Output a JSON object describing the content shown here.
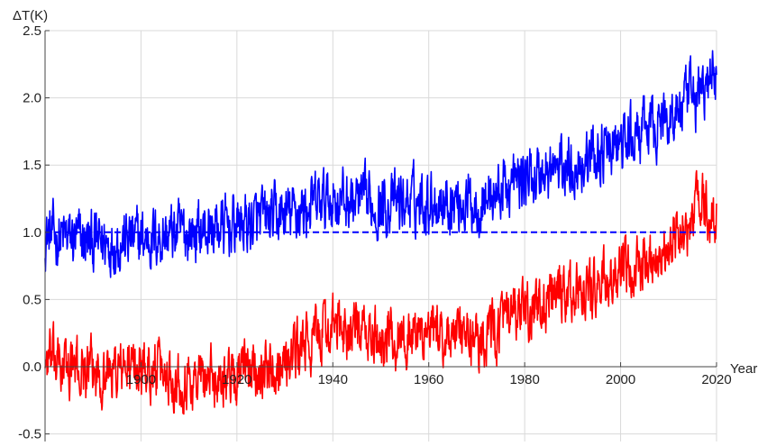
{
  "chart_data": {
    "type": "line",
    "title": "",
    "xlabel": "Year",
    "ylabel": "ΔT(K)",
    "xlim": [
      1880,
      2020
    ],
    "ylim": [
      -0.55,
      2.5
    ],
    "x_ticks": [
      1900,
      1920,
      1940,
      1960,
      1980,
      2000,
      2020
    ],
    "x_tick_labels": [
      "1900",
      "1920",
      "1940",
      "1960",
      "1980",
      "2000",
      "2020"
    ],
    "y_ticks": [
      -0.5,
      0.0,
      0.5,
      1.0,
      1.5,
      2.0,
      2.5
    ],
    "y_tick_labels": [
      "-0.5",
      "0.0",
      "0.5",
      "1.0",
      "1.5",
      "2.0",
      "2.5"
    ],
    "grid": true,
    "legend": "none",
    "series": [
      {
        "color": "#0000ff",
        "style": "solid",
        "sampling": "monthly",
        "x": [
          1880,
          1890,
          1900,
          1910,
          1920,
          1930,
          1940,
          1950,
          1960,
          1970,
          1980,
          1990,
          2000,
          2010,
          2015,
          2020
        ],
        "trend": [
          0.98,
          0.92,
          0.95,
          1.0,
          1.05,
          1.12,
          1.25,
          1.2,
          1.25,
          1.22,
          1.4,
          1.5,
          1.65,
          1.85,
          2.0,
          2.15
        ],
        "amplitude": 0.18
      },
      {
        "color": "#ff0000",
        "style": "solid",
        "sampling": "monthly",
        "x": [
          1880,
          1890,
          1900,
          1910,
          1920,
          1930,
          1940,
          1950,
          1960,
          1970,
          1980,
          1990,
          2000,
          2010,
          2015,
          2016,
          2020
        ],
        "trend": [
          0.05,
          -0.05,
          0.0,
          -0.1,
          -0.05,
          0.05,
          0.3,
          0.2,
          0.25,
          0.2,
          0.4,
          0.55,
          0.65,
          0.9,
          1.05,
          1.3,
          1.05
        ],
        "amplitude": 0.17
      },
      {
        "color": "#0000ff",
        "style": "dashed",
        "sampling": "reference",
        "x": [
          1880,
          2020
        ],
        "trend": [
          1.0,
          1.0
        ],
        "amplitude": 0
      }
    ]
  }
}
